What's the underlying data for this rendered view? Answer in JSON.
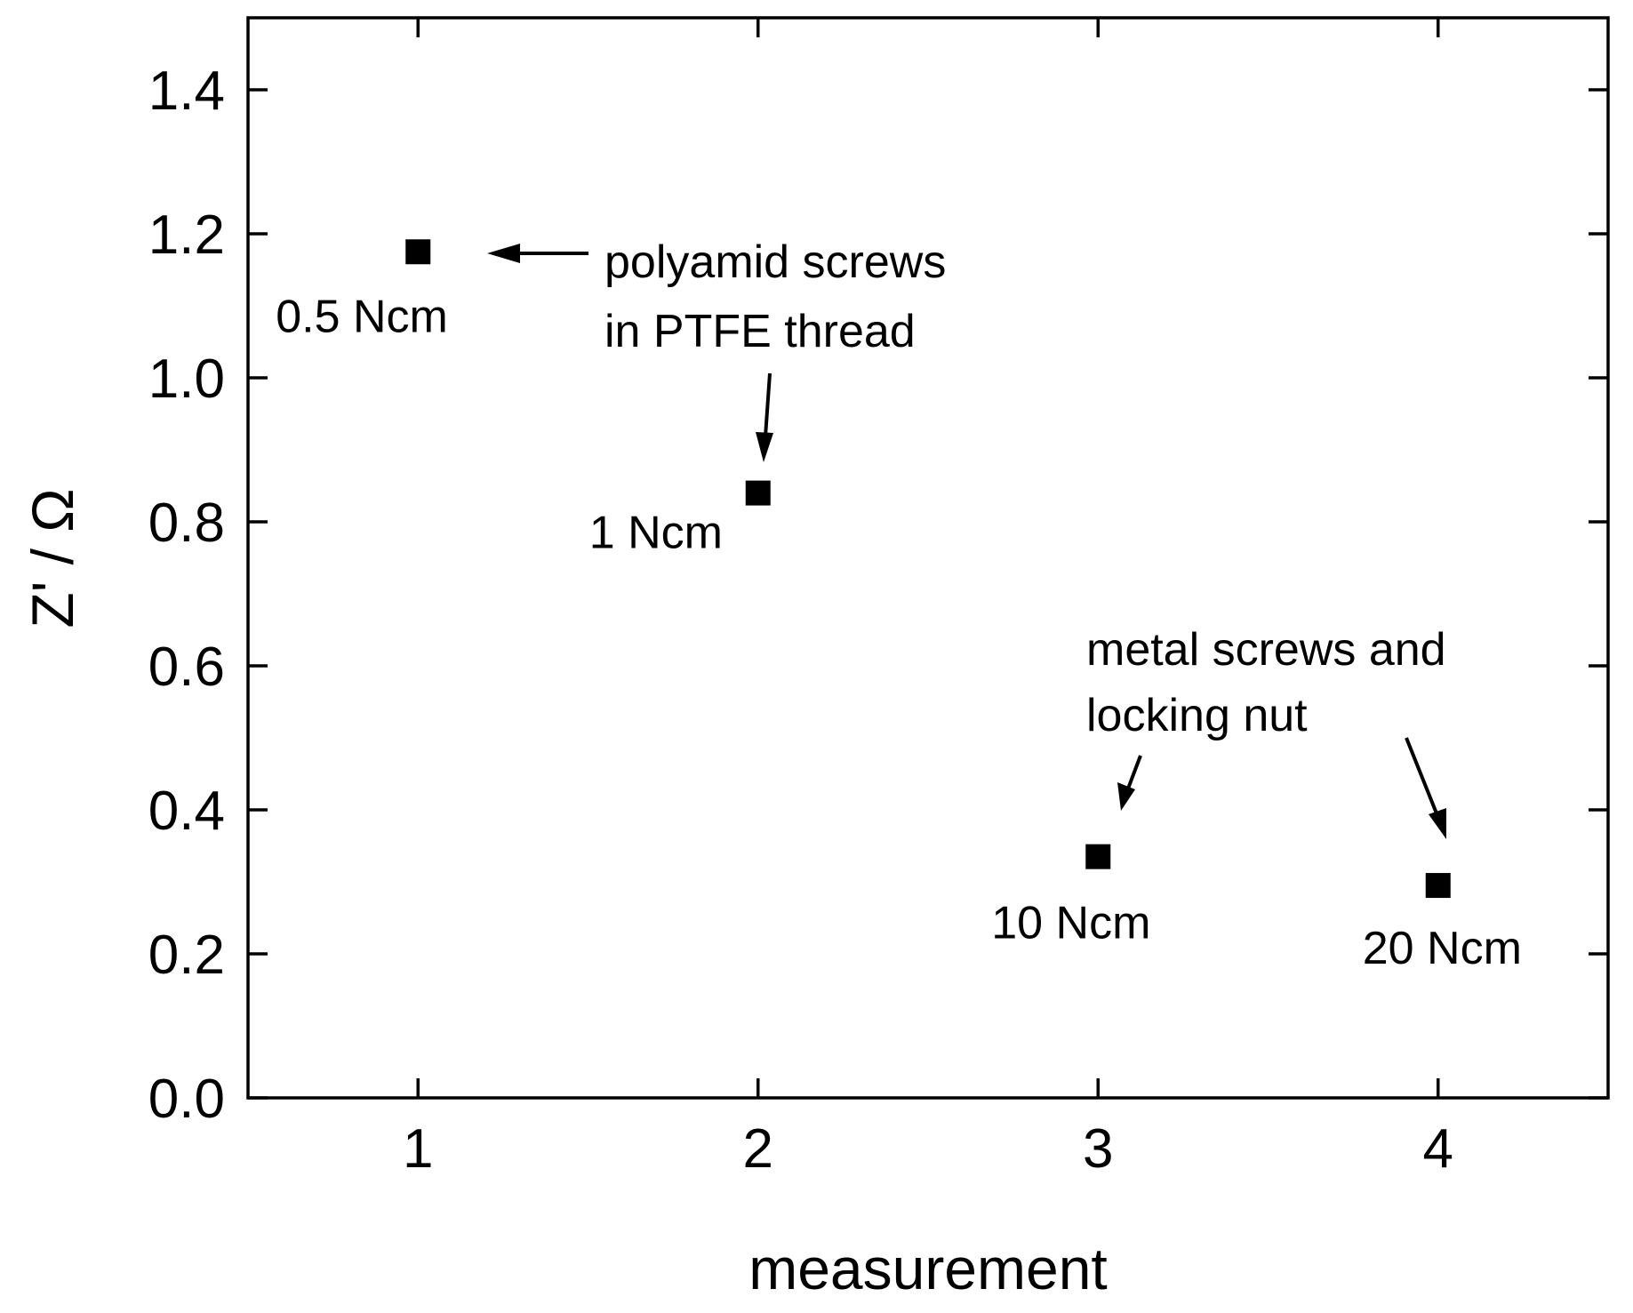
{
  "chart_data": {
    "type": "scatter",
    "xlabel": "measurement",
    "ylabel": "Z' / Ω",
    "xlim": [
      0.5,
      4.5
    ],
    "ylim": [
      0.0,
      1.5
    ],
    "xticks": [
      1,
      2,
      3,
      4
    ],
    "xtick_labels": [
      "1",
      "2",
      "3",
      "4"
    ],
    "yticks": [
      0.0,
      0.2,
      0.4,
      0.6,
      0.8,
      1.0,
      1.2,
      1.4
    ],
    "ytick_labels": [
      "0.0",
      "0.2",
      "0.4",
      "0.6",
      "0.8",
      "1.0",
      "1.2",
      "1.4"
    ],
    "grid": false,
    "legend": "none",
    "marker": "square",
    "marker_color": "#000000",
    "points": [
      {
        "x": 1,
        "y": 1.175,
        "label": "0.5 Ncm"
      },
      {
        "x": 2,
        "y": 0.84,
        "label": "1 Ncm"
      },
      {
        "x": 3,
        "y": 0.335,
        "label": "10 Ncm"
      },
      {
        "x": 4,
        "y": 0.295,
        "label": "20 Ncm"
      }
    ],
    "annotations": [
      {
        "lines": [
          "polyamid screws",
          "in PTFE thread"
        ]
      },
      {
        "lines": [
          "metal screws and",
          "locking nut"
        ]
      }
    ]
  }
}
